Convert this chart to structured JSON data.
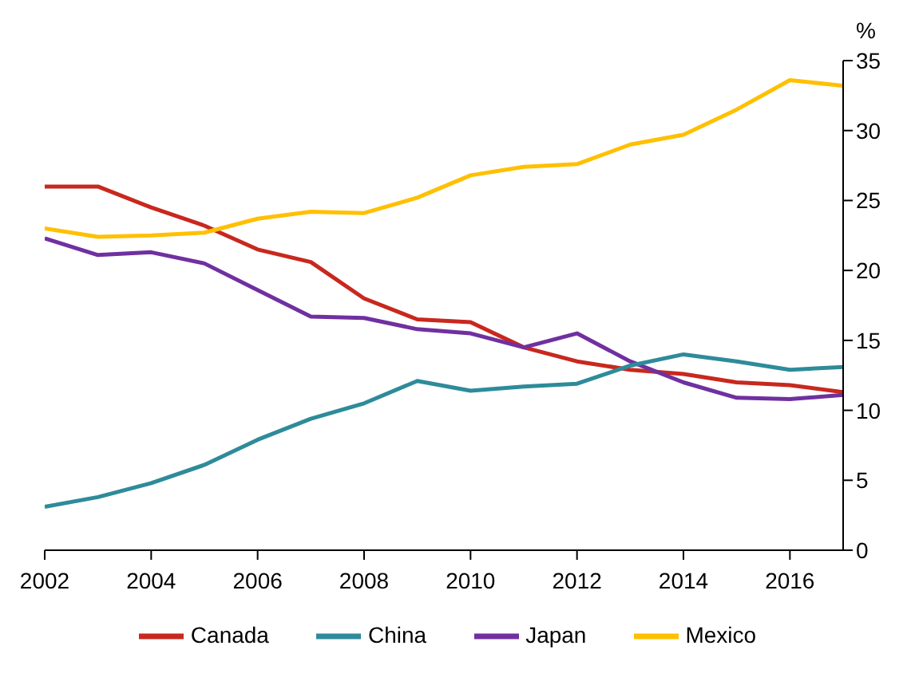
{
  "chart_data": {
    "type": "line",
    "ylabel": "%",
    "x": [
      2002,
      2003,
      2004,
      2005,
      2006,
      2007,
      2008,
      2009,
      2010,
      2011,
      2012,
      2013,
      2014,
      2015,
      2016,
      2017
    ],
    "series": [
      {
        "name": "Canada",
        "color": "#c8281e",
        "values": [
          26,
          26,
          24.5,
          23.2,
          21.5,
          20.6,
          18,
          16.5,
          16.3,
          14.5,
          13.5,
          12.9,
          12.6,
          12,
          11.8,
          11.3
        ]
      },
      {
        "name": "Japan",
        "color": "#7030a0",
        "values": [
          22.3,
          21.1,
          21.3,
          20.5,
          18.6,
          16.7,
          16.6,
          15.8,
          15.5,
          14.5,
          15.5,
          13.5,
          12,
          10.9,
          10.8,
          11.1
        ]
      },
      {
        "name": "Mexico",
        "color": "#ffc000",
        "values": [
          23,
          22.4,
          22.5,
          22.7,
          23.7,
          24.2,
          24.1,
          25.2,
          26.8,
          27.4,
          27.6,
          29,
          29.7,
          31.5,
          33.6,
          33.2
        ]
      },
      {
        "name": "China",
        "color": "#2e8b9a",
        "values": [
          3.1,
          3.8,
          4.8,
          6.1,
          7.9,
          9.4,
          10.5,
          12.1,
          11.4,
          11.7,
          11.9,
          13.2,
          14,
          13.5,
          12.9,
          13.1
        ]
      }
    ],
    "xlim": [
      2002,
      2017
    ],
    "xticks": [
      2002,
      2004,
      2006,
      2008,
      2010,
      2012,
      2014,
      2016
    ],
    "ylim": [
      0,
      35
    ],
    "yticks": [
      0,
      5,
      10,
      15,
      20,
      25,
      30,
      35
    ],
    "grid": false,
    "legend": "bottom",
    "marker": "none",
    "line_style": "solid"
  }
}
